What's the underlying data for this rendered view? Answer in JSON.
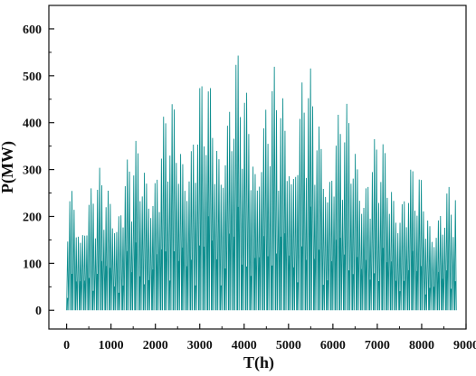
{
  "colors": {
    "series": "#0f8f8f",
    "axis": "#111111",
    "background": "#ffffff"
  },
  "chart_data": {
    "type": "line",
    "title": "",
    "xlabel": "T(h)",
    "ylabel": "P(MW)",
    "xlim": [
      -400,
      9000
    ],
    "ylim": [
      -40,
      650
    ],
    "xticks": [
      0,
      1000,
      2000,
      3000,
      4000,
      5000,
      6000,
      7000,
      8000,
      9000
    ],
    "yticks": [
      0,
      100,
      200,
      300,
      400,
      500,
      600
    ],
    "x_tick_labels": [
      "0",
      "1000",
      "2000",
      "3000",
      "4000",
      "5000",
      "6000",
      "7000",
      "8000",
      "9000"
    ],
    "y_tick_labels": [
      "0",
      "100",
      "200",
      "300",
      "400",
      "500",
      "600"
    ],
    "grid": false,
    "series": [
      {
        "x": [
          0,
          400,
          800,
          1200,
          1600,
          2000,
          2400,
          2800,
          3200,
          3600,
          3800,
          4000,
          4400,
          4800,
          5200,
          5300,
          5600,
          6000,
          6400,
          6800,
          7200,
          7600,
          8000,
          8400,
          8760
        ],
        "y": [
          305,
          285,
          310,
          335,
          375,
          420,
          470,
          490,
          520,
          540,
          565,
          520,
          515,
          525,
          520,
          565,
          480,
          465,
          440,
          405,
          360,
          330,
          300,
          265,
          275
        ]
      }
    ]
  }
}
